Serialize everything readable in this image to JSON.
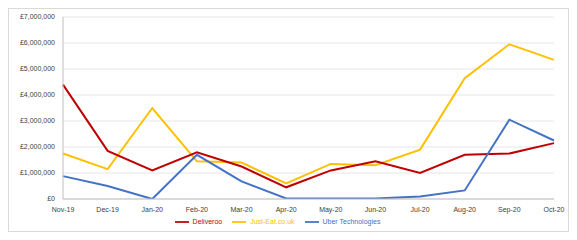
{
  "chart_data": {
    "type": "line",
    "categories": [
      "Nov-19",
      "Dec-19",
      "Jan-20",
      "Feb-20",
      "Mar-20",
      "Apr-20",
      "May-20",
      "Jun-20",
      "Jul-20",
      "Aug-20",
      "Sep-20",
      "Oct-20"
    ],
    "series": [
      {
        "name": "Just-Eat.co.uk",
        "color": "#ffc000",
        "values": [
          1750000,
          1150000,
          3500000,
          1450000,
          1400000,
          600000,
          1350000,
          1300000,
          1900000,
          4650000,
          5950000,
          5350000
        ]
      },
      {
        "name": "Deliveroo",
        "color": "#c00000",
        "values": [
          4400000,
          1850000,
          1100000,
          1800000,
          1250000,
          450000,
          1100000,
          1450000,
          1000000,
          1700000,
          1750000,
          2150000
        ]
      },
      {
        "name": "Uber Technologies",
        "color": "#4472c4",
        "values": [
          880000,
          500000,
          0,
          1700000,
          680000,
          20000,
          20000,
          20000,
          100000,
          330000,
          3050000,
          2250000
        ]
      }
    ],
    "ylim": [
      0,
      7000000
    ],
    "yticks": [
      {
        "value": 0,
        "label": "£0"
      },
      {
        "value": 1000000,
        "label": "£1,000,000"
      },
      {
        "value": 2000000,
        "label": "£2,000,000"
      },
      {
        "value": 3000000,
        "label": "£3,000,000"
      },
      {
        "value": 4000000,
        "label": "£4,000,000"
      },
      {
        "value": 5000000,
        "label": "£5,000,000"
      },
      {
        "value": 6000000,
        "label": "£6,000,000"
      },
      {
        "value": 7000000,
        "label": "£7,000,000"
      }
    ],
    "grid": true,
    "legend": "bottom"
  }
}
